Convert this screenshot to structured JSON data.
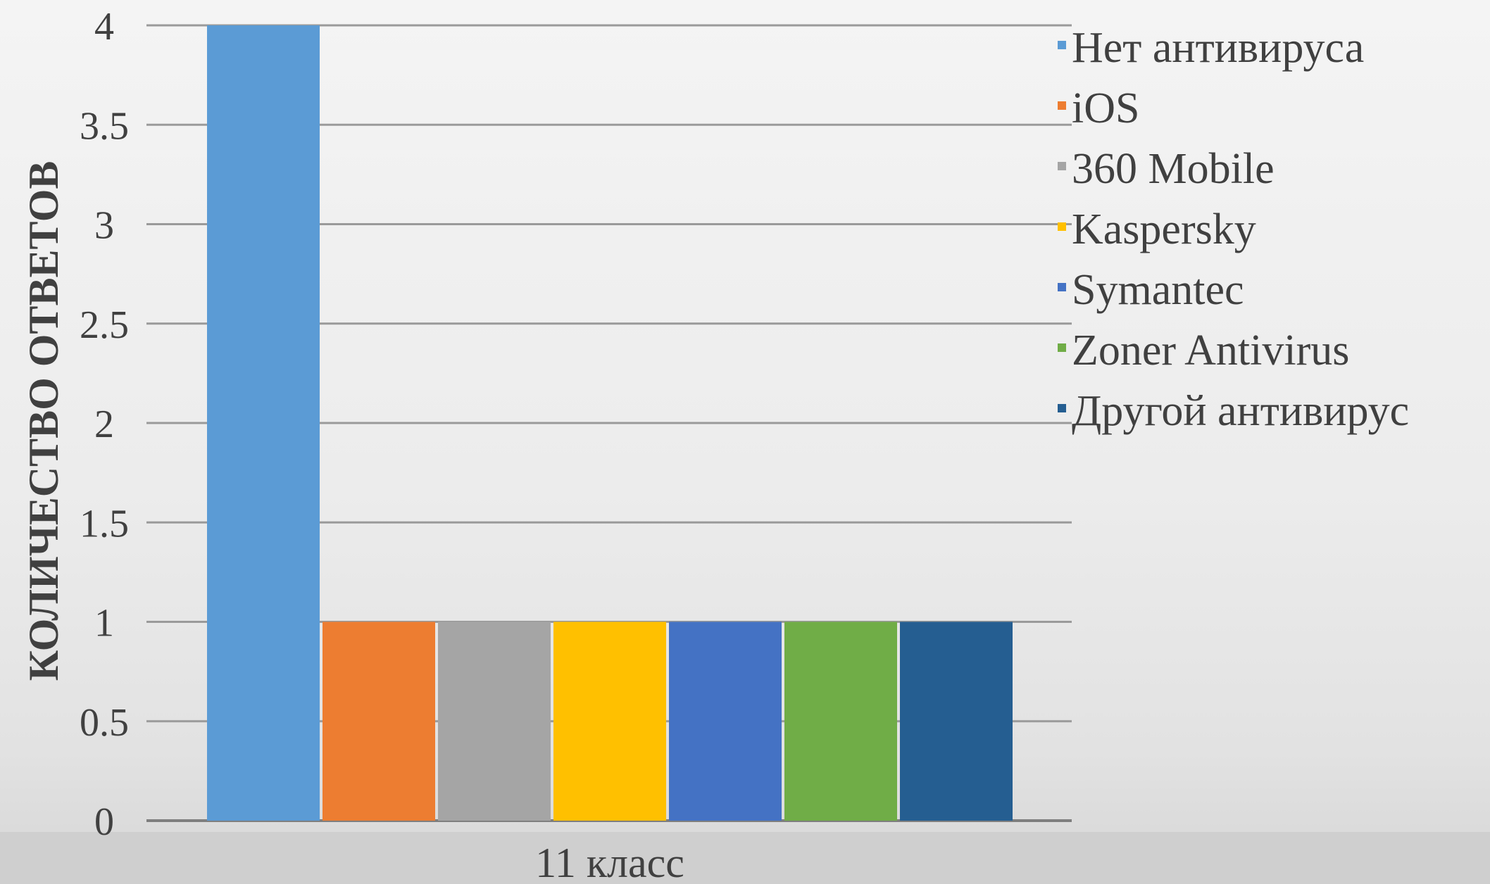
{
  "chart_data": {
    "type": "bar",
    "categories": [
      "11 класс"
    ],
    "series": [
      {
        "name": "Нет антивируса",
        "values": [
          4
        ],
        "color": "#5b9bd5"
      },
      {
        "name": "iOS",
        "values": [
          1
        ],
        "color": "#ed7d31"
      },
      {
        "name": "360 Mobile",
        "values": [
          1
        ],
        "color": "#a5a5a5"
      },
      {
        "name": "Kaspersky",
        "values": [
          1
        ],
        "color": "#ffc000"
      },
      {
        "name": "Symantec",
        "values": [
          1
        ],
        "color": "#4472c4"
      },
      {
        "name": "Zoner Antivirus",
        "values": [
          1
        ],
        "color": "#70ad47"
      },
      {
        "name": "Другой антивирус",
        "values": [
          1
        ],
        "color": "#255e91"
      }
    ],
    "ylabel": "КОЛИЧЕСТВО ОТВЕТОВ",
    "ylim": [
      0,
      4
    ],
    "yticks": [
      "0",
      "0.5",
      "1",
      "1.5",
      "2",
      "2.5",
      "3",
      "3.5",
      "4"
    ],
    "grid": true,
    "legend_position": "right"
  }
}
